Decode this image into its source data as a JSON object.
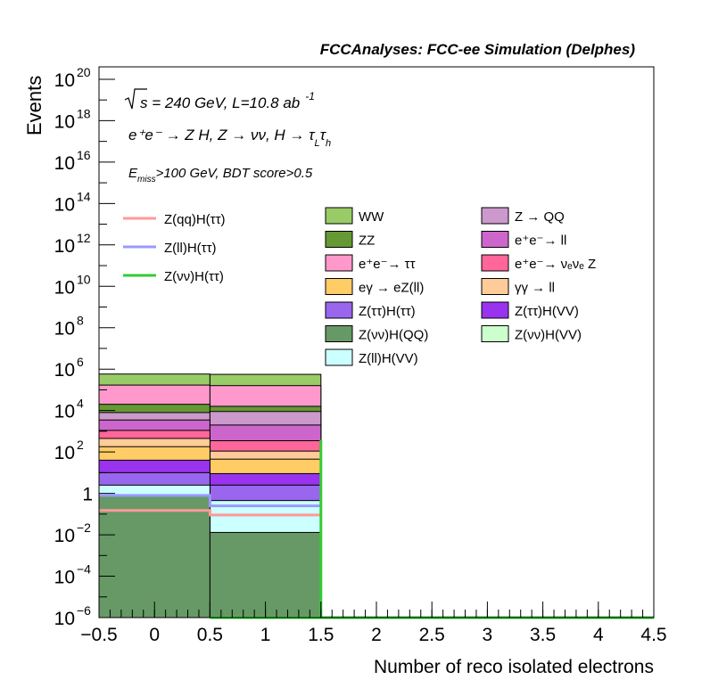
{
  "chart_data": {
    "type": "bar",
    "title": "FCCAnalyses: FCC-ee Simulation (Delphes)",
    "xlabel": "Number of reco isolated electrons",
    "ylabel": "Events",
    "xlim": [
      -0.5,
      4.5
    ],
    "ylim_log10": [
      -6,
      20.6
    ],
    "y_scale": "log",
    "x_ticks": [
      "−0.5",
      "0",
      "0.5",
      "1",
      "1.5",
      "2",
      "2.5",
      "3",
      "3.5",
      "4",
      "4.5"
    ],
    "x_tick_values": [
      -0.5,
      0,
      0.5,
      1,
      1.5,
      2,
      2.5,
      3,
      3.5,
      4,
      4.5
    ],
    "y_tick_exponents": [
      20,
      18,
      16,
      14,
      12,
      10,
      8,
      6,
      4,
      2,
      0,
      -2,
      -4,
      -6
    ],
    "y_tick_labels": {
      "20": {
        "base": "10",
        "exp": "20"
      },
      "18": {
        "base": "10",
        "exp": "18"
      },
      "16": {
        "base": "10",
        "exp": "16"
      },
      "14": {
        "base": "10",
        "exp": "14"
      },
      "12": {
        "base": "10",
        "exp": "12"
      },
      "10": {
        "base": "10",
        "exp": "10"
      },
      "8": {
        "base": "10",
        "exp": "8"
      },
      "6": {
        "base": "10",
        "exp": "6"
      },
      "4": {
        "base": "10",
        "exp": "4"
      },
      "2": {
        "base": "10",
        "exp": "2"
      },
      "0": {
        "base": "1",
        "exp": ""
      },
      "-2": {
        "base": "10",
        "exp": "−2"
      },
      "-4": {
        "base": "10",
        "exp": "−4"
      },
      "-6": {
        "base": "10",
        "exp": "−6"
      }
    },
    "annotations": {
      "energy": "s = 240 GeV, L=10.8 ab",
      "energy_exp": "-1",
      "process": "e⁺e⁻ → Z H, Z → νν, H → τ",
      "process_sub1": "L",
      "process_sub2": "h",
      "cut_pre": "E",
      "cut_sub": "miss",
      "cut_post": ">100 GeV, BDT score>0.5"
    },
    "bins": [
      [
        -0.5,
        0.5
      ],
      [
        0.5,
        1.5
      ],
      [
        1.5,
        2.5
      ],
      [
        2.5,
        3.5
      ],
      [
        3.5,
        4.5
      ]
    ],
    "stack": [
      {
        "name": "Z(νν)H(QQ)",
        "color": "#669966",
        "edges": [
          0.8,
          0.013
        ]
      },
      {
        "name": "Z(ll)H(VV)",
        "color": "#ccffff",
        "edges": [
          2.5,
          0.45
        ]
      },
      {
        "name": "Z(ττ)H(ττ)",
        "color": "#9966ee",
        "edges": [
          10,
          2.5
        ]
      },
      {
        "name": "Z(ττ)H(VV)",
        "color": "#9933ee",
        "edges": [
          40,
          9
        ]
      },
      {
        "name": "eγ → eZ(ll)",
        "color": "#ffcc66",
        "edges": [
          180,
          45
        ]
      },
      {
        "name": "γγ → ll",
        "color": "#ffcc99",
        "edges": [
          450,
          110
        ]
      },
      {
        "name": "e⁺e⁻→ νₑνₑ Z",
        "color": "#ff6699",
        "edges": [
          1100,
          350
        ]
      },
      {
        "name": "e⁺e⁻→ ll",
        "color": "#cc66cc",
        "edges": [
          3500,
          2000
        ]
      },
      {
        "name": "Z → QQ",
        "color": "#cc99cc",
        "edges": [
          8000,
          9000
        ]
      },
      {
        "name": "ZZ",
        "color": "#669933",
        "edges": [
          20000,
          16000
        ]
      },
      {
        "name": "e⁺e⁻→ ττ",
        "color": "#ff99cc",
        "edges": [
          170000,
          160000
        ]
      },
      {
        "name": "WW",
        "color": "#99cc66",
        "edges": [
          580000,
          560000
        ]
      }
    ],
    "lines": [
      {
        "name": "Z(qq)H(ττ)",
        "color": "#ff9999",
        "values": [
          0.15,
          0.09
        ]
      },
      {
        "name": "Z(ll)H(ττ)",
        "color": "#9999ff",
        "values": [
          0.8,
          0.25
        ]
      },
      {
        "name": "Z(νν)H(ττ)",
        "color": "#33cc33",
        "values": [
          null,
          380
        ]
      }
    ],
    "legend_lines": [
      {
        "name": "Z(qq)H(ττ)",
        "color": "#ff9999"
      },
      {
        "name": "Z(ll)H(ττ)",
        "color": "#9999ff"
      },
      {
        "name": "Z(νν)H(ττ)",
        "color": "#33cc33"
      }
    ],
    "legend_boxes": [
      {
        "name": "WW",
        "color": "#99cc66"
      },
      {
        "name": "Z → QQ",
        "color": "#cc99cc"
      },
      {
        "name": "ZZ",
        "color": "#669933"
      },
      {
        "name": "e⁺e⁻→ ll",
        "color": "#cc66cc"
      },
      {
        "name": "e⁺e⁻→ ττ",
        "color": "#ff99cc"
      },
      {
        "name": "e⁺e⁻→ νₑνₑ Z",
        "color": "#ff6699"
      },
      {
        "name": "eγ → eZ(ll)",
        "color": "#ffcc66"
      },
      {
        "name": "γγ → ll",
        "color": "#ffcc99"
      },
      {
        "name": "Z(ττ)H(ττ)",
        "color": "#9966ee"
      },
      {
        "name": "Z(ττ)H(VV)",
        "color": "#9933ee"
      },
      {
        "name": "Z(νν)H(QQ)",
        "color": "#669966"
      },
      {
        "name": "Z(νν)H(VV)",
        "color": "#ccffcc"
      },
      {
        "name": "Z(ll)H(VV)",
        "color": "#ccffff"
      }
    ],
    "legend_placement": "top",
    "grid": false
  }
}
